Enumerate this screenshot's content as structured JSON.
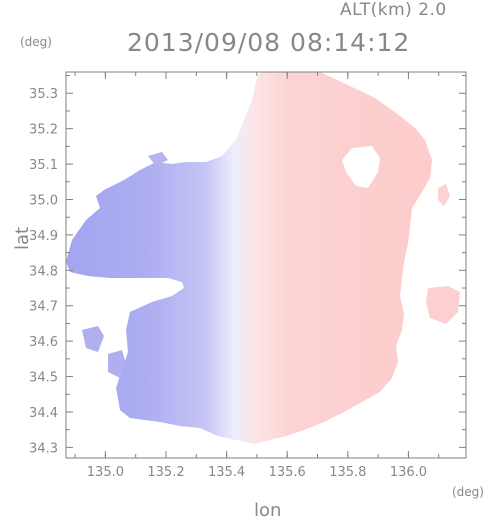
{
  "header": {
    "altitude": "ALT(km)  2.0",
    "timestamp": "2013/09/08  08:14:12"
  },
  "axes": {
    "y_unit": "(deg)",
    "x_unit": "(deg)",
    "x_label": "lon",
    "y_label": "lat",
    "x_ticks": [
      "135.0",
      "135.2",
      "135.4",
      "135.6",
      "135.8",
      "136.0"
    ],
    "y_ticks": [
      "34.3",
      "34.4",
      "34.5",
      "34.6",
      "34.7",
      "34.8",
      "34.9",
      "35.0",
      "35.1",
      "35.2",
      "35.3"
    ],
    "x_range": [
      134.87,
      136.19
    ],
    "y_range": [
      34.27,
      35.36
    ]
  },
  "map": {
    "center_lon": 135.52,
    "center_lat": 34.82,
    "colors": {
      "approaching": "#a9a9f2",
      "receding": "#fdcfcf",
      "near_zero": "#ececfb",
      "frame": "#808080"
    }
  }
}
